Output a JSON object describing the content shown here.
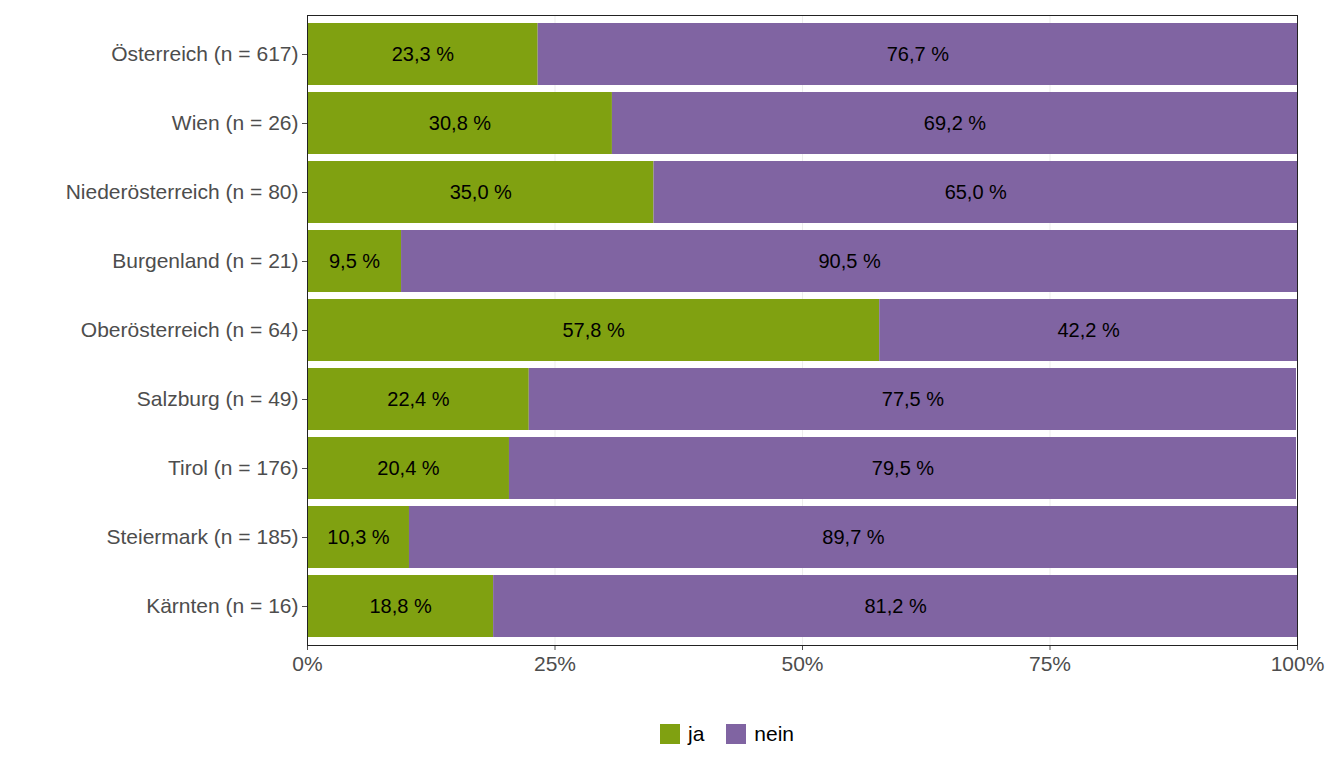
{
  "chart_data": {
    "type": "bar",
    "orientation": "horizontal",
    "stacked": true,
    "data_labels": true,
    "grid": true,
    "legend": "bottom",
    "categories": [
      "Österreich (n = 617)",
      "Wien (n = 26)",
      "Niederösterreich (n = 80)",
      "Burgenland (n = 21)",
      "Oberösterreich (n = 64)",
      "Salzburg (n = 49)",
      "Tirol (n = 176)",
      "Steiermark (n = 185)",
      "Kärnten (n = 16)"
    ],
    "series": [
      {
        "name": "ja",
        "color": "#80a111",
        "values": [
          23.3,
          30.8,
          35.0,
          9.5,
          57.8,
          22.4,
          20.4,
          10.3,
          18.8
        ],
        "value_labels": [
          "23,3 %",
          "30,8 %",
          "35,0 %",
          "9,5 %",
          "57,8 %",
          "22,4 %",
          "20,4 %",
          "10,3 %",
          "18,8 %"
        ]
      },
      {
        "name": "nein",
        "color": "#8064a2",
        "values": [
          76.7,
          69.2,
          65.0,
          90.5,
          42.2,
          77.5,
          79.5,
          89.7,
          81.2
        ],
        "value_labels": [
          "76,7 %",
          "69,2 %",
          "65,0 %",
          "90,5 %",
          "42,2 %",
          "77,5 %",
          "79,5 %",
          "89,7 %",
          "81,2 %"
        ]
      }
    ],
    "xlim": [
      0,
      100
    ],
    "xticks": [
      {
        "value": 0,
        "label": "0%"
      },
      {
        "value": 25,
        "label": "25%"
      },
      {
        "value": 50,
        "label": "50%"
      },
      {
        "value": 75,
        "label": "75%"
      },
      {
        "value": 100,
        "label": "100%"
      }
    ]
  }
}
